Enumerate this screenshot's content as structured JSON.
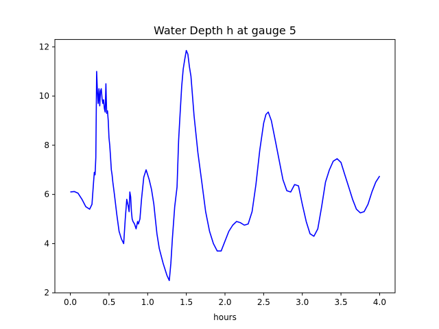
{
  "chart_data": {
    "type": "line",
    "title": "Water Depth h at gauge 5",
    "xlabel": "hours",
    "ylabel": "",
    "xlim": [
      -0.2,
      4.2
    ],
    "ylim": [
      2,
      12.3
    ],
    "xticks": [
      0.0,
      0.5,
      1.0,
      1.5,
      2.0,
      2.5,
      3.0,
      3.5,
      4.0
    ],
    "xtick_labels": [
      "0.0",
      "0.5",
      "1.0",
      "1.5",
      "2.0",
      "2.5",
      "3.0",
      "3.5",
      "4.0"
    ],
    "yticks": [
      2,
      4,
      6,
      8,
      10,
      12
    ],
    "ytick_labels": [
      "2",
      "4",
      "6",
      "8",
      "10",
      "12"
    ],
    "grid": false,
    "series": [
      {
        "color": "#0000ff",
        "x": [
          0.0,
          0.05,
          0.1,
          0.15,
          0.2,
          0.25,
          0.28,
          0.3,
          0.31,
          0.32,
          0.33,
          0.34,
          0.35,
          0.36,
          0.37,
          0.38,
          0.39,
          0.4,
          0.41,
          0.42,
          0.43,
          0.44,
          0.45,
          0.46,
          0.47,
          0.48,
          0.49,
          0.5,
          0.51,
          0.52,
          0.53,
          0.54,
          0.55,
          0.57,
          0.6,
          0.63,
          0.66,
          0.69,
          0.71,
          0.73,
          0.75,
          0.76,
          0.77,
          0.78,
          0.79,
          0.8,
          0.81,
          0.82,
          0.83,
          0.85,
          0.87,
          0.88,
          0.9,
          0.92,
          0.95,
          0.98,
          1.0,
          1.02,
          1.05,
          1.08,
          1.1,
          1.12,
          1.15,
          1.2,
          1.25,
          1.28,
          1.3,
          1.32,
          1.35,
          1.38,
          1.4,
          1.42,
          1.44,
          1.46,
          1.48,
          1.5,
          1.52,
          1.54,
          1.56,
          1.6,
          1.65,
          1.7,
          1.75,
          1.8,
          1.85,
          1.9,
          1.95,
          2.0,
          2.05,
          2.1,
          2.15,
          2.2,
          2.25,
          2.3,
          2.35,
          2.4,
          2.45,
          2.5,
          2.53,
          2.56,
          2.6,
          2.65,
          2.7,
          2.75,
          2.8,
          2.85,
          2.9,
          2.95,
          3.0,
          3.05,
          3.1,
          3.15,
          3.2,
          3.25,
          3.3,
          3.35,
          3.4,
          3.45,
          3.5,
          3.55,
          3.6,
          3.65,
          3.7,
          3.75,
          3.8,
          3.85,
          3.9,
          3.95,
          4.0
        ],
        "y": [
          6.1,
          6.12,
          6.05,
          5.8,
          5.5,
          5.4,
          5.6,
          6.5,
          6.9,
          6.8,
          7.5,
          11.0,
          10.2,
          9.7,
          10.3,
          9.6,
          10.2,
          10.3,
          9.9,
          9.7,
          9.85,
          9.5,
          9.35,
          10.5,
          9.3,
          9.4,
          9.0,
          8.3,
          8.0,
          7.5,
          7.0,
          6.8,
          6.5,
          6.0,
          5.2,
          4.5,
          4.2,
          4.0,
          5.0,
          5.8,
          5.5,
          5.3,
          6.1,
          5.9,
          5.3,
          5.0,
          4.9,
          4.85,
          4.8,
          4.6,
          4.9,
          4.8,
          5.0,
          5.8,
          6.7,
          7.0,
          6.8,
          6.6,
          6.2,
          5.6,
          5.0,
          4.4,
          3.8,
          3.2,
          2.7,
          2.5,
          3.2,
          4.2,
          5.5,
          6.3,
          8.2,
          9.3,
          10.4,
          11.1,
          11.5,
          11.85,
          11.7,
          11.2,
          10.8,
          9.2,
          7.7,
          6.5,
          5.3,
          4.5,
          4.0,
          3.7,
          3.7,
          4.1,
          4.5,
          4.75,
          4.9,
          4.85,
          4.75,
          4.8,
          5.3,
          6.4,
          7.8,
          8.9,
          9.25,
          9.35,
          9.0,
          8.2,
          7.4,
          6.6,
          6.15,
          6.1,
          6.4,
          6.35,
          5.6,
          4.9,
          4.4,
          4.3,
          4.6,
          5.5,
          6.5,
          7.0,
          7.35,
          7.45,
          7.3,
          6.8,
          6.3,
          5.8,
          5.4,
          5.25,
          5.3,
          5.6,
          6.1,
          6.5,
          6.75
        ]
      }
    ]
  }
}
